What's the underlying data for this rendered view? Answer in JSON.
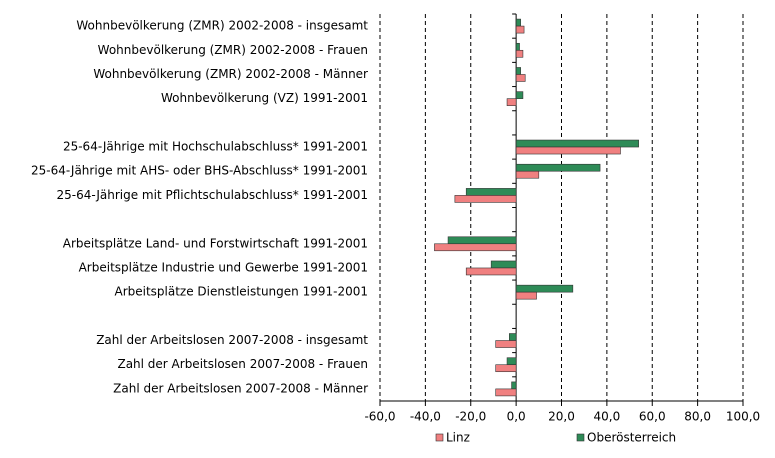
{
  "chart_data": {
    "type": "hbar",
    "categories": [
      "Wohnbevölkerung (ZMR) 2002-2008 - insgesamt",
      "Wohnbevölkerung (ZMR) 2002-2008 - Frauen",
      "Wohnbevölkerung (ZMR) 2002-2008 - Männer",
      "Wohnbevölkerung (VZ) 1991-2001",
      null,
      "25-64-Jährige mit Hochschulabschluss* 1991-2001",
      "25-64-Jährige mit AHS- oder BHS-Abschluss* 1991-2001",
      "25-64-Jährige mit Pflichtschulabschluss* 1991-2001",
      null,
      "Arbeitsplätze Land- und Forstwirtschaft 1991-2001",
      "Arbeitsplätze Industrie und Gewerbe 1991-2001",
      "Arbeitsplätze Dienstleistungen 1991-2001",
      null,
      "Zahl der Arbeitslosen 2007-2008 - insgesamt",
      "Zahl der Arbeitslosen 2007-2008 - Frauen",
      "Zahl der Arbeitslosen 2007-2008 - Männer"
    ],
    "series": [
      {
        "name": "Linz",
        "color": "#f08080",
        "values": [
          3.5,
          3,
          4,
          -4,
          null,
          46,
          10,
          -27,
          null,
          -36,
          -22,
          9,
          null,
          -9,
          -9,
          -9
        ]
      },
      {
        "name": "Oberösterreich",
        "color": "#2e8b57",
        "values": [
          2,
          1.5,
          2,
          3,
          null,
          54,
          37,
          -22,
          null,
          -30,
          -11,
          25,
          null,
          -3,
          -4,
          -2
        ]
      }
    ],
    "xlim": [
      -60,
      100
    ],
    "xticks": [
      {
        "value": -60,
        "label": "-60,0"
      },
      {
        "value": -40,
        "label": "-40,0"
      },
      {
        "value": -20,
        "label": "-20,0"
      },
      {
        "value": 0,
        "label": "0,0"
      },
      {
        "value": 20,
        "label": "20,0"
      },
      {
        "value": 40,
        "label": "40,0"
      },
      {
        "value": 60,
        "label": "60,0"
      },
      {
        "value": 80,
        "label": "80,0"
      },
      {
        "value": 100,
        "label": "100,0"
      }
    ],
    "grid": true,
    "legend": "bottom"
  }
}
